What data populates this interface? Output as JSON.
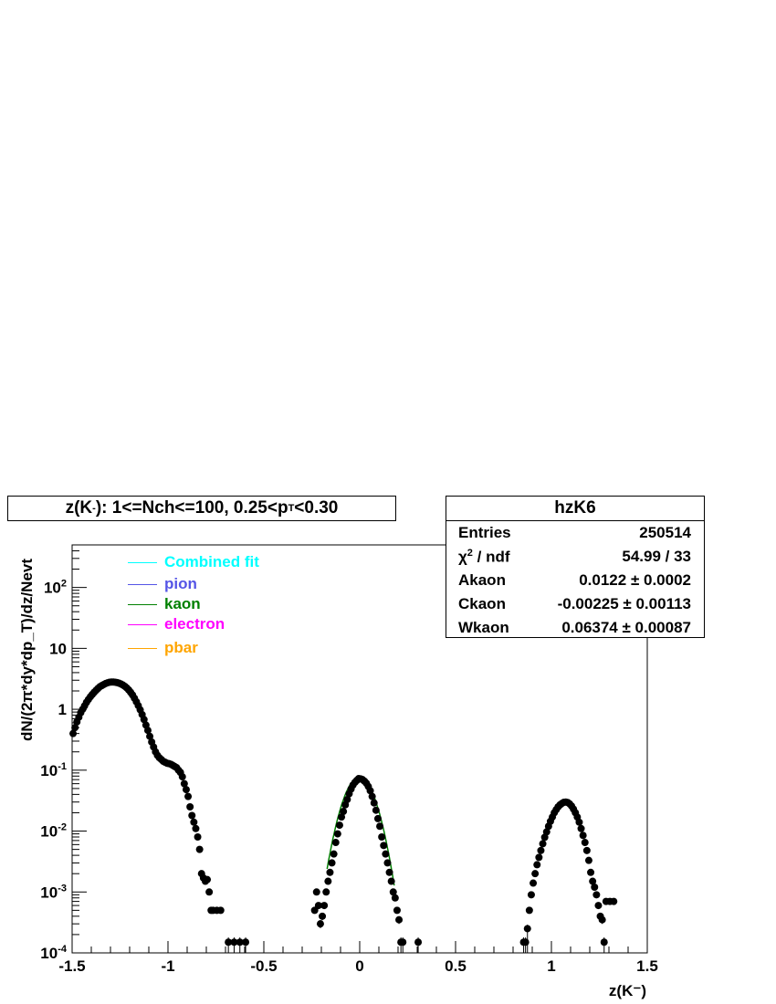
{
  "chart_data": {
    "type": "scatter",
    "title": {
      "prefix": "z(K",
      "prefix_sup": "-",
      "middle": "): 1<=Nch<=100, 0.25<p",
      "sub": "T",
      "suffix": "<0.30"
    },
    "ylabel": "dN/(2π*dy*dp_T)/dz/Nevt",
    "xlabel": "z(K⁻)",
    "xlim": [
      -1.5,
      1.5
    ],
    "ylim": [
      0.0001,
      500
    ],
    "y_scale": "log",
    "x_ticks": [
      "-1.5",
      "-1",
      "-0.5",
      "0",
      "0.5",
      "1",
      "1.5"
    ],
    "y_ticks": [
      {
        "value": 0.0001,
        "base": "10",
        "exp": "-4"
      },
      {
        "value": 0.001,
        "base": "10",
        "exp": "-3"
      },
      {
        "value": 0.01,
        "base": "10",
        "exp": "-2"
      },
      {
        "value": 0.1,
        "base": "10",
        "exp": "-1"
      },
      {
        "value": 1,
        "base": "1",
        "exp": ""
      },
      {
        "value": 10,
        "base": "10",
        "exp": ""
      },
      {
        "value": 100,
        "base": "10",
        "exp": "2"
      }
    ],
    "legend": {
      "position": "top-left",
      "entries": [
        {
          "name": "Combined fit",
          "color": "#00ffff"
        },
        {
          "name": "pion",
          "color": "#5555e6"
        },
        {
          "name": "kaon",
          "color": "#008000"
        },
        {
          "name": "electron",
          "color": "#ff00ff"
        },
        {
          "name": "pbar",
          "color": "#ffa500"
        }
      ]
    },
    "marker_color": "#000000",
    "stats": {
      "name": "hzK6",
      "entries_label": "Entries",
      "entries": "250514",
      "chi2_label_base": "χ",
      "chi2_label_sup": "2",
      "chi2_label_rest": " / ndf",
      "chi2": "54.99 / 33",
      "params": [
        {
          "name": "Akaon",
          "value": "0.0122 ± 0.0002"
        },
        {
          "name": "Ckaon",
          "value": "-0.00225 ± 0.00113"
        },
        {
          "name": "Wkaon",
          "value": "0.06374 ± 0.00087"
        }
      ]
    },
    "fit": {
      "name": "kaon",
      "A": 0.0122,
      "C": -0.00225,
      "W": 0.06374,
      "x_range": [
        -0.17,
        0.18
      ],
      "color": "#008000"
    },
    "series": [
      {
        "name": "data",
        "points": [
          [
            -1.495,
            0.4
          ],
          [
            -1.485,
            0.5
          ],
          [
            -1.475,
            0.62
          ],
          [
            -1.465,
            0.74
          ],
          [
            -1.455,
            0.88
          ],
          [
            -1.445,
            1.0
          ],
          [
            -1.435,
            1.14
          ],
          [
            -1.425,
            1.3
          ],
          [
            -1.415,
            1.45
          ],
          [
            -1.405,
            1.6
          ],
          [
            -1.395,
            1.75
          ],
          [
            -1.385,
            1.9
          ],
          [
            -1.375,
            2.05
          ],
          [
            -1.365,
            2.2
          ],
          [
            -1.355,
            2.35
          ],
          [
            -1.345,
            2.45
          ],
          [
            -1.335,
            2.55
          ],
          [
            -1.325,
            2.65
          ],
          [
            -1.315,
            2.72
          ],
          [
            -1.305,
            2.78
          ],
          [
            -1.295,
            2.8
          ],
          [
            -1.285,
            2.8
          ],
          [
            -1.275,
            2.78
          ],
          [
            -1.265,
            2.74
          ],
          [
            -1.255,
            2.68
          ],
          [
            -1.245,
            2.6
          ],
          [
            -1.235,
            2.5
          ],
          [
            -1.225,
            2.38
          ],
          [
            -1.215,
            2.24
          ],
          [
            -1.205,
            2.08
          ],
          [
            -1.195,
            1.9
          ],
          [
            -1.185,
            1.72
          ],
          [
            -1.175,
            1.52
          ],
          [
            -1.165,
            1.33
          ],
          [
            -1.155,
            1.15
          ],
          [
            -1.145,
            0.98
          ],
          [
            -1.135,
            0.82
          ],
          [
            -1.125,
            0.68
          ],
          [
            -1.115,
            0.55
          ],
          [
            -1.105,
            0.45
          ],
          [
            -1.095,
            0.36
          ],
          [
            -1.085,
            0.29
          ],
          [
            -1.075,
            0.24
          ],
          [
            -1.065,
            0.2
          ],
          [
            -1.055,
            0.175
          ],
          [
            -1.045,
            0.16
          ],
          [
            -1.035,
            0.15
          ],
          [
            -1.025,
            0.14
          ],
          [
            -1.015,
            0.135
          ],
          [
            -1.005,
            0.13
          ],
          [
            -0.995,
            0.128
          ],
          [
            -0.985,
            0.125
          ],
          [
            -0.975,
            0.12
          ],
          [
            -0.965,
            0.115
          ],
          [
            -0.955,
            0.11
          ],
          [
            -0.945,
            0.1
          ],
          [
            -0.935,
            0.092
          ],
          [
            -0.925,
            0.078
          ],
          [
            -0.915,
            0.06
          ],
          [
            -0.905,
            0.048
          ],
          [
            -0.895,
            0.037
          ],
          [
            -0.885,
            0.025
          ],
          [
            -0.875,
            0.018
          ],
          [
            -0.865,
            0.014
          ],
          [
            -0.855,
            0.011
          ],
          [
            -0.845,
            0.008
          ],
          [
            -0.835,
            0.005
          ],
          [
            -0.825,
            0.002
          ],
          [
            -0.815,
            0.0017
          ],
          [
            -0.805,
            0.0015
          ],
          [
            -0.795,
            0.0016
          ],
          [
            -0.785,
            0.001
          ],
          [
            -0.775,
            0.0005
          ],
          [
            -0.765,
            0.0005
          ],
          [
            -0.745,
            0.0005
          ],
          [
            -0.725,
            0.0005
          ],
          [
            -0.685,
            0.00015
          ],
          [
            -0.655,
            0.00015
          ],
          [
            -0.625,
            0.00015
          ],
          [
            -0.595,
            0.00015
          ],
          [
            -0.235,
            0.0005
          ],
          [
            -0.225,
            0.001
          ],
          [
            -0.215,
            0.0006
          ],
          [
            -0.205,
            0.0003
          ],
          [
            -0.195,
            0.0004
          ],
          [
            -0.185,
            0.0006
          ],
          [
            -0.175,
            0.001
          ],
          [
            -0.165,
            0.0015
          ],
          [
            -0.155,
            0.0021
          ],
          [
            -0.145,
            0.003
          ],
          [
            -0.135,
            0.0042
          ],
          [
            -0.125,
            0.0065
          ],
          [
            -0.115,
            0.009
          ],
          [
            -0.105,
            0.0125
          ],
          [
            -0.095,
            0.017
          ],
          [
            -0.085,
            0.021
          ],
          [
            -0.075,
            0.027
          ],
          [
            -0.065,
            0.033
          ],
          [
            -0.055,
            0.041
          ],
          [
            -0.045,
            0.049
          ],
          [
            -0.035,
            0.057
          ],
          [
            -0.025,
            0.063
          ],
          [
            -0.015,
            0.068
          ],
          [
            -0.005,
            0.073
          ],
          [
            0.005,
            0.072
          ],
          [
            0.015,
            0.07
          ],
          [
            0.025,
            0.066
          ],
          [
            0.035,
            0.061
          ],
          [
            0.045,
            0.054
          ],
          [
            0.055,
            0.046
          ],
          [
            0.065,
            0.037
          ],
          [
            0.075,
            0.029
          ],
          [
            0.085,
            0.022
          ],
          [
            0.095,
            0.016
          ],
          [
            0.105,
            0.012
          ],
          [
            0.115,
            0.008
          ],
          [
            0.125,
            0.0058
          ],
          [
            0.135,
            0.0042
          ],
          [
            0.145,
            0.003
          ],
          [
            0.155,
            0.0021
          ],
          [
            0.165,
            0.0015
          ],
          [
            0.175,
            0.001
          ],
          [
            0.185,
            0.0008
          ],
          [
            0.195,
            0.0005
          ],
          [
            0.205,
            0.00035
          ],
          [
            0.215,
            0.00015
          ],
          [
            0.225,
            0.00015
          ],
          [
            0.305,
            0.00015
          ],
          [
            0.855,
            0.00015
          ],
          [
            0.865,
            0.00015
          ],
          [
            0.875,
            0.00025
          ],
          [
            0.885,
            0.0005
          ],
          [
            0.895,
            0.0009
          ],
          [
            0.905,
            0.0014
          ],
          [
            0.915,
            0.002
          ],
          [
            0.925,
            0.0028
          ],
          [
            0.935,
            0.0037
          ],
          [
            0.945,
            0.0048
          ],
          [
            0.955,
            0.0062
          ],
          [
            0.965,
            0.0079
          ],
          [
            0.975,
            0.0097
          ],
          [
            0.985,
            0.012
          ],
          [
            0.995,
            0.0145
          ],
          [
            1.005,
            0.017
          ],
          [
            1.015,
            0.02
          ],
          [
            1.025,
            0.0225
          ],
          [
            1.035,
            0.025
          ],
          [
            1.045,
            0.027
          ],
          [
            1.055,
            0.0285
          ],
          [
            1.065,
            0.0297
          ],
          [
            1.075,
            0.03
          ],
          [
            1.085,
            0.0295
          ],
          [
            1.095,
            0.028
          ],
          [
            1.105,
            0.0258
          ],
          [
            1.115,
            0.023
          ],
          [
            1.125,
            0.02
          ],
          [
            1.135,
            0.017
          ],
          [
            1.145,
            0.014
          ],
          [
            1.155,
            0.011
          ],
          [
            1.165,
            0.0085
          ],
          [
            1.175,
            0.0065
          ],
          [
            1.185,
            0.0048
          ],
          [
            1.195,
            0.0033
          ],
          [
            1.205,
            0.0021
          ],
          [
            1.215,
            0.0015
          ],
          [
            1.225,
            0.0012
          ],
          [
            1.235,
            0.0009
          ],
          [
            1.245,
            0.0006
          ],
          [
            1.255,
            0.0004
          ],
          [
            1.265,
            0.00035
          ],
          [
            1.275,
            0.00015
          ],
          [
            1.285,
            0.0007
          ],
          [
            1.305,
            0.0007
          ],
          [
            1.325,
            0.0007
          ]
        ]
      }
    ]
  }
}
